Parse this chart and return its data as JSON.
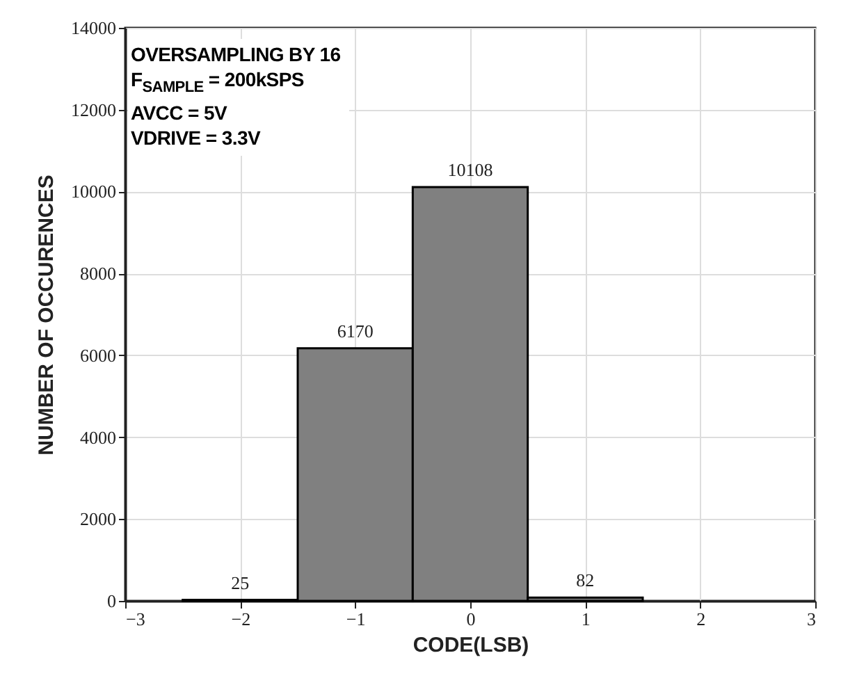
{
  "chart_data": {
    "type": "histogram",
    "xlabel": "CODE(LSB)",
    "ylabel": "NUMBER OF OCCURENCES",
    "bins": [
      -2.5,
      -1.5,
      -0.5,
      0.5,
      1.5
    ],
    "values": [
      25,
      6170,
      10108,
      82
    ],
    "color": "#808080",
    "data_labels": true,
    "xlim": [
      -3,
      3
    ],
    "xticks": [
      -3,
      -2,
      -1,
      0,
      1,
      2,
      3
    ],
    "ylim": [
      0,
      14000
    ],
    "yticks": [
      0,
      2000,
      4000,
      6000,
      8000,
      10000,
      12000,
      14000
    ],
    "grid": true,
    "annotations": [
      "OVERSAMPLING BY 16",
      "F$_{SAMPLE}$ = 200kSPS",
      "AVCC = 5V",
      "VDRIVE = 3.3V"
    ]
  }
}
